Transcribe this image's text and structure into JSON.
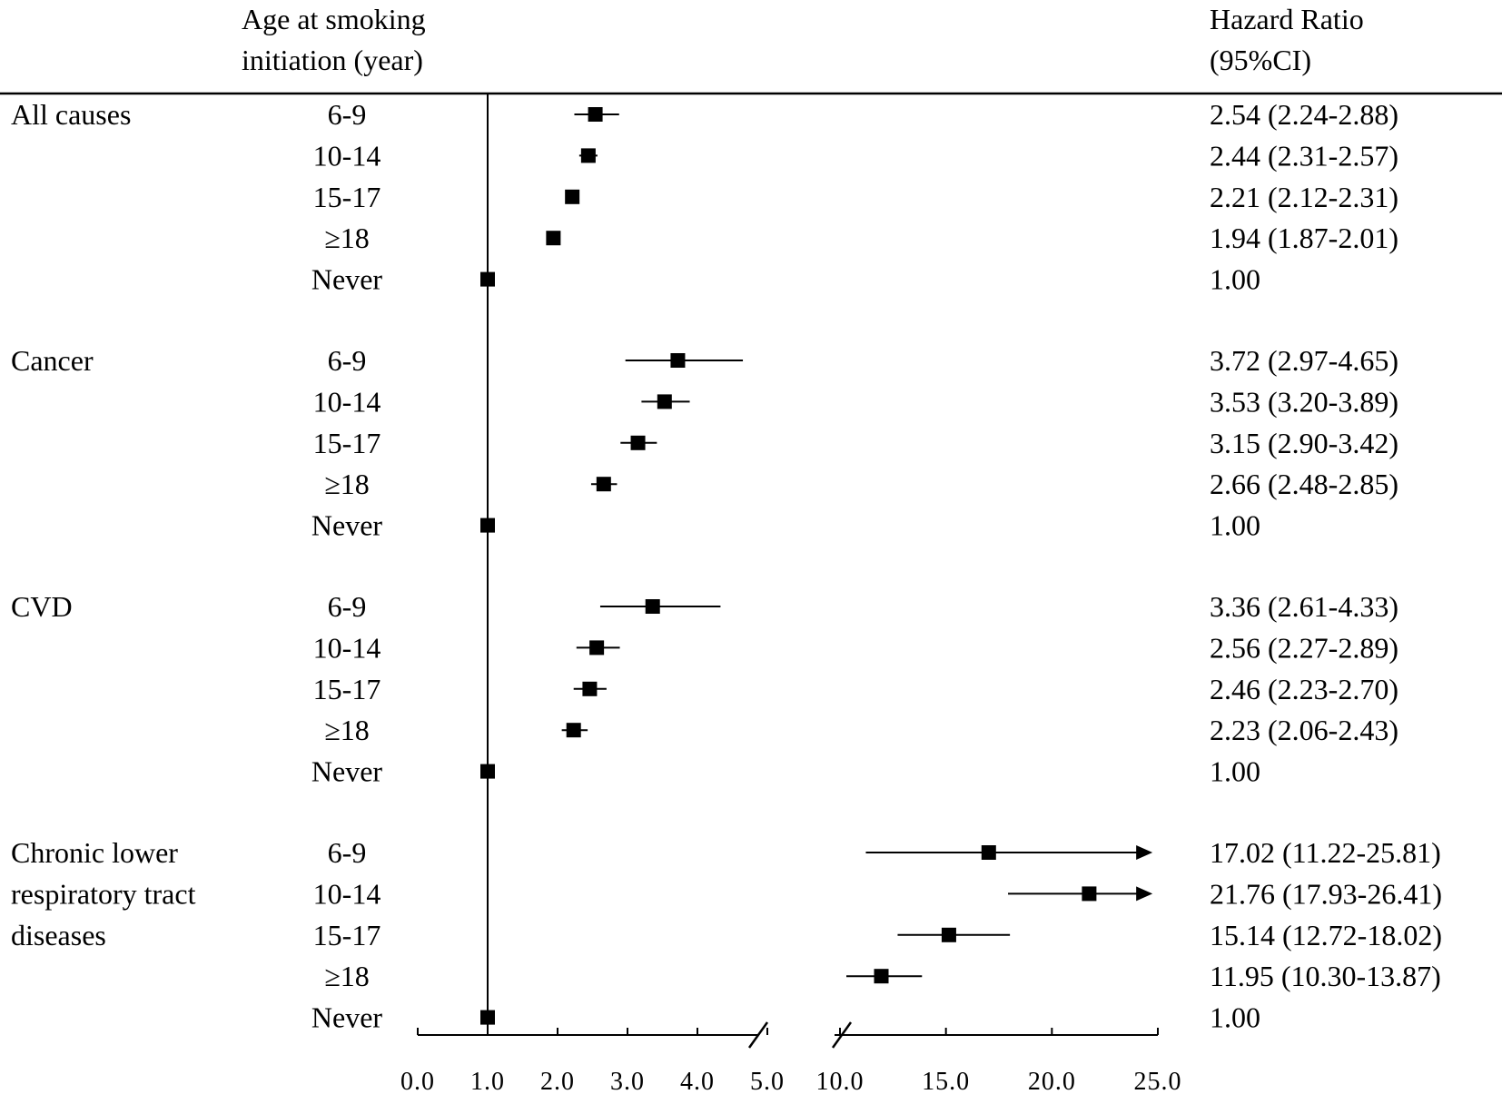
{
  "header": {
    "age_line1": "Age at smoking",
    "age_line2": "initiation (year)",
    "hr_line1": "Hazard Ratio",
    "hr_line2": "(95%CI)"
  },
  "chart_data": {
    "type": "forest",
    "title": "",
    "xlabel": "",
    "ylabel": "",
    "reference_line": 1.0,
    "axis_break": [
      5.0,
      10.0
    ],
    "axis_segments": [
      {
        "range": [
          0.0,
          5.0
        ],
        "ticks": [
          "0.0",
          "1.0",
          "2.0",
          "3.0",
          "4.0",
          "5.0"
        ]
      },
      {
        "range": [
          10.0,
          25.0
        ],
        "ticks": [
          "10.0",
          "15.0",
          "20.0",
          "25.0"
        ]
      }
    ],
    "groups": [
      {
        "label_lines": [
          "All causes"
        ],
        "rows": [
          {
            "age": "6-9",
            "hr": 2.54,
            "lo": 2.24,
            "hi": 2.88,
            "text": "2.54 (2.24-2.88)"
          },
          {
            "age": "10-14",
            "hr": 2.44,
            "lo": 2.31,
            "hi": 2.57,
            "text": "2.44 (2.31-2.57)"
          },
          {
            "age": "15-17",
            "hr": 2.21,
            "lo": 2.12,
            "hi": 2.31,
            "text": "2.21 (2.12-2.31)"
          },
          {
            "age": "≥18",
            "hr": 1.94,
            "lo": 1.87,
            "hi": 2.01,
            "text": "1.94 (1.87-2.01)"
          },
          {
            "age": "Never",
            "hr": 1.0,
            "lo": 1.0,
            "hi": 1.0,
            "text": "1.00"
          }
        ]
      },
      {
        "label_lines": [
          "Cancer"
        ],
        "rows": [
          {
            "age": "6-9",
            "hr": 3.72,
            "lo": 2.97,
            "hi": 4.65,
            "text": "3.72 (2.97-4.65)"
          },
          {
            "age": "10-14",
            "hr": 3.53,
            "lo": 3.2,
            "hi": 3.89,
            "text": "3.53 (3.20-3.89)"
          },
          {
            "age": "15-17",
            "hr": 3.15,
            "lo": 2.9,
            "hi": 3.42,
            "text": "3.15 (2.90-3.42)"
          },
          {
            "age": "≥18",
            "hr": 2.66,
            "lo": 2.48,
            "hi": 2.85,
            "text": "2.66 (2.48-2.85)"
          },
          {
            "age": "Never",
            "hr": 1.0,
            "lo": 1.0,
            "hi": 1.0,
            "text": "1.00"
          }
        ]
      },
      {
        "label_lines": [
          "CVD"
        ],
        "rows": [
          {
            "age": "6-9",
            "hr": 3.36,
            "lo": 2.61,
            "hi": 4.33,
            "text": "3.36 (2.61-4.33)"
          },
          {
            "age": "10-14",
            "hr": 2.56,
            "lo": 2.27,
            "hi": 2.89,
            "text": "2.56 (2.27-2.89)"
          },
          {
            "age": "15-17",
            "hr": 2.46,
            "lo": 2.23,
            "hi": 2.7,
            "text": "2.46 (2.23-2.70)"
          },
          {
            "age": "≥18",
            "hr": 2.23,
            "lo": 2.06,
            "hi": 2.43,
            "text": "2.23 (2.06-2.43)"
          },
          {
            "age": "Never",
            "hr": 1.0,
            "lo": 1.0,
            "hi": 1.0,
            "text": "1.00"
          }
        ]
      },
      {
        "label_lines": [
          "Chronic lower",
          "respiratory tract",
          "diseases"
        ],
        "rows": [
          {
            "age": "6-9",
            "hr": 17.02,
            "lo": 11.22,
            "hi": 25.81,
            "text": "17.02 (11.22-25.81)"
          },
          {
            "age": "10-14",
            "hr": 21.76,
            "lo": 17.93,
            "hi": 26.41,
            "text": "21.76 (17.93-26.41)"
          },
          {
            "age": "15-17",
            "hr": 15.14,
            "lo": 12.72,
            "hi": 18.02,
            "text": "15.14 (12.72-18.02)"
          },
          {
            "age": "≥18",
            "hr": 11.95,
            "lo": 10.3,
            "hi": 13.87,
            "text": "11.95 (10.30-13.87)"
          },
          {
            "age": "Never",
            "hr": 1.0,
            "lo": 1.0,
            "hi": 1.0,
            "text": "1.00"
          }
        ]
      }
    ]
  }
}
